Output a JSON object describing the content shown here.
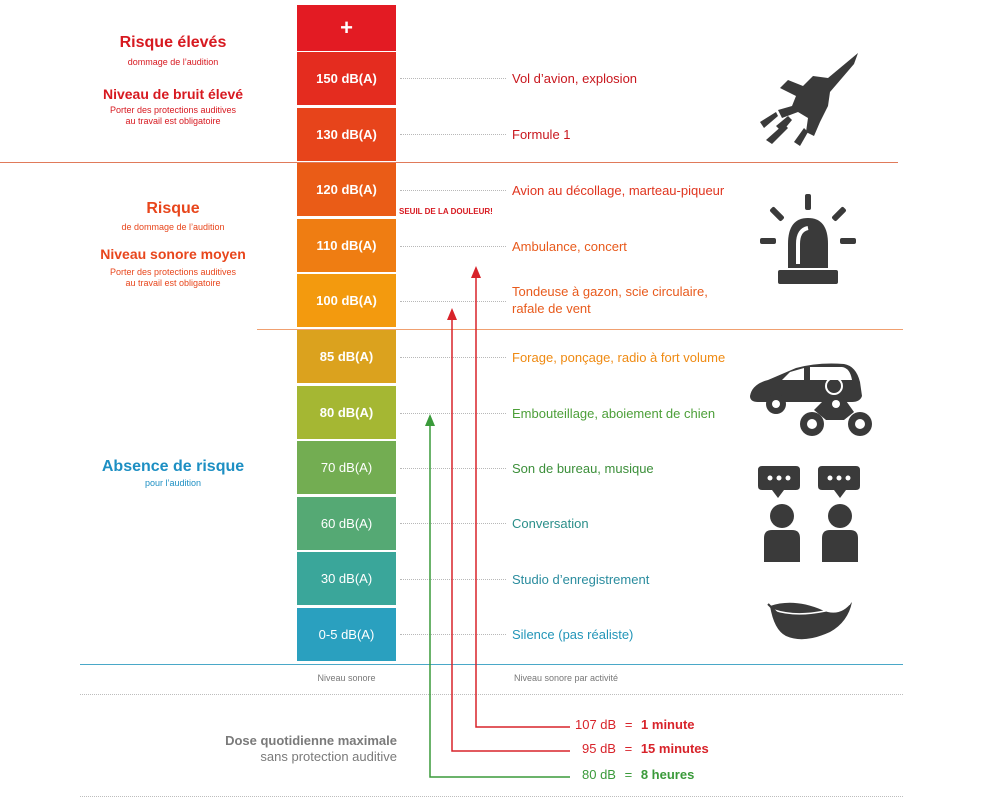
{
  "zones": {
    "high": {
      "title": "Risque élevés",
      "subtitle": "dommage de l’audition",
      "title2": "Niveau de bruit élevé",
      "subtitle2": [
        "Porter des protections auditives",
        "au travail est obligatoire"
      ]
    },
    "medium": {
      "title": "Risque",
      "subtitle": "de dommage de l’audition",
      "title2": "Niveau sonore moyen",
      "subtitle2": [
        "Porter des protections auditives",
        "au travail est obligatoire"
      ]
    },
    "none": {
      "title": "Absence de risque",
      "subtitle": "pour l’audition"
    }
  },
  "scale": {
    "top": "+",
    "levels": [
      "150 dB(A)",
      "130 dB(A)",
      "120 dB(A)",
      "110 dB(A)",
      "100 dB(A)",
      "85 dB(A)",
      "80 dB(A)",
      "70 dB(A)",
      "60 dB(A)",
      "30 dB(A)",
      "0-5 dB(A)"
    ],
    "colors": [
      "#e31b23",
      "#e42c1f",
      "#e7441b",
      "#ea5c17",
      "#ef7d12",
      "#f39a0e",
      "#dba21e",
      "#a5b733",
      "#73ad52",
      "#55a974",
      "#3aa69a",
      "#2aa0bf"
    ],
    "pain_threshold": "SEUIL DE LA DOULEUR!"
  },
  "activities": [
    {
      "text": [
        "Vol d’avion, explosion"
      ],
      "color": "#c8171e"
    },
    {
      "text": [
        "Formule 1"
      ],
      "color": "#c8171e"
    },
    {
      "text": [
        "Avion au décollage, marteau-piqueur"
      ],
      "color": "#e0351f"
    },
    {
      "text": [
        "Ambulance, concert"
      ],
      "color": "#e85a1c"
    },
    {
      "text": [
        "Tondeuse à gazon, scie circulaire,",
        "rafale de vent"
      ],
      "color": "#e85a1c"
    },
    {
      "text": [
        "Forage, ponçage, radio à fort volume"
      ],
      "color": "#ef8a12"
    },
    {
      "text": [
        "Embouteillage, aboiement de chien"
      ],
      "color": "#4c9f38"
    },
    {
      "text": [
        "Son de bureau, musique"
      ],
      "color": "#3c8f3a"
    },
    {
      "text": [
        "Conversation"
      ],
      "color": "#2b8f8a"
    },
    {
      "text": [
        "Studio d’enregistrement"
      ],
      "color": "#2a8c9e"
    },
    {
      "text": [
        "Silence (pas réaliste)"
      ],
      "color": "#2295b8"
    }
  ],
  "footer": {
    "scale_label": "Niveau sonore",
    "activity_label": "Niveau sonore par activité"
  },
  "dose": {
    "title": "Dose quotidienne maximale",
    "subtitle": "sans protection auditive",
    "rows": [
      {
        "level": "107 dB",
        "eq": "=",
        "duration": "1 minute",
        "color": "#d8232a"
      },
      {
        "level": "95 dB",
        "eq": "=",
        "duration": "15 minutes",
        "color": "#d8232a"
      },
      {
        "level": "80 dB",
        "eq": "=",
        "duration": "8 heures",
        "color": "#3a9a3a"
      }
    ]
  },
  "icons": [
    "fighter-jet-icon",
    "siren-icon",
    "car-motorcycle-icon",
    "conversation-icon",
    "feather-icon"
  ]
}
